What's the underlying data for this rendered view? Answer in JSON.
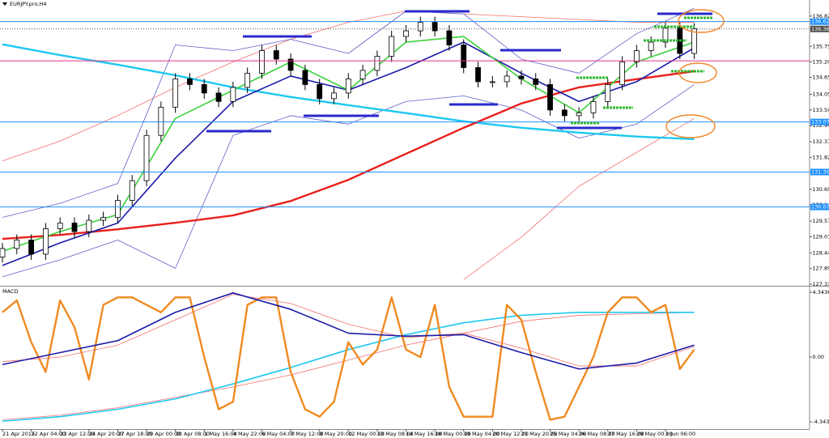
{
  "chart_data": [
    {
      "type": "candlestick",
      "title": "EURJPY.pro,H4",
      "xlim": [
        0,
        56
      ],
      "ylim": [
        127.31,
        137.39
      ],
      "yticks": [
        {
          "value": 136.82,
          "label": "136.820"
        },
        {
          "value": 135.75,
          "label": "135.750"
        },
        135.205,
        134.655,
        134.055,
        {
          "value": 133.5,
          "label": "133.500"
        },
        132.945,
        132.375,
        131.825,
        130.695,
        {
          "value": 130.14,
          "label": "130.140"
        },
        {
          "value": 129.57,
          "label": "129.570"
        },
        129.015,
        128.445,
        {
          "value": 127.89,
          "label": "127.890"
        },
        127.335
      ],
      "colors": {
        "up": "#ffffff",
        "down": "#000000"
      },
      "open": [
        128.3,
        128.6,
        128.9,
        128.4,
        129.3,
        129.5,
        129.2,
        129.6,
        129.7,
        130.3,
        131.0,
        132.6,
        133.6,
        134.6,
        134.4,
        134.1,
        133.8,
        134.3,
        134.8,
        135.6,
        135.3,
        134.9,
        134.4,
        133.9,
        134.1,
        134.6,
        134.9,
        135.4,
        136.1,
        136.3,
        136.6,
        136.3,
        135.8,
        135.0,
        134.5,
        134.5,
        134.7,
        134.6,
        134.4,
        133.5,
        133.3,
        133.4,
        133.8,
        134.4,
        135.2,
        135.6,
        135.9,
        136.4,
        135.5
      ],
      "high": [
        128.8,
        129.1,
        129.1,
        129.5,
        129.7,
        129.7,
        129.8,
        129.9,
        130.5,
        131.2,
        132.8,
        133.8,
        134.8,
        134.8,
        134.6,
        134.3,
        134.5,
        135.0,
        135.8,
        135.8,
        135.5,
        135.1,
        134.6,
        134.3,
        134.8,
        135.1,
        135.6,
        136.3,
        136.5,
        136.8,
        136.8,
        136.5,
        136.0,
        135.2,
        134.7,
        134.9,
        134.9,
        134.8,
        134.6,
        133.7,
        133.6,
        134.0,
        134.6,
        135.4,
        135.8,
        136.1,
        136.6,
        136.6,
        136.57
      ],
      "low": [
        128.1,
        128.4,
        128.2,
        128.2,
        129.1,
        129.0,
        129.0,
        129.4,
        129.5,
        130.1,
        130.8,
        132.4,
        133.4,
        134.2,
        133.9,
        133.6,
        133.6,
        134.1,
        134.6,
        135.1,
        134.7,
        134.2,
        133.7,
        133.7,
        133.9,
        134.4,
        134.7,
        135.2,
        135.9,
        136.1,
        136.1,
        135.6,
        134.8,
        134.3,
        134.3,
        134.3,
        134.4,
        134.2,
        133.3,
        133.1,
        133.1,
        133.2,
        133.6,
        134.2,
        135.0,
        135.4,
        135.7,
        135.3,
        135.3
      ],
      "close": [
        128.6,
        128.9,
        128.4,
        129.3,
        129.5,
        129.2,
        129.6,
        129.7,
        130.3,
        131.0,
        132.6,
        133.6,
        134.6,
        134.4,
        134.1,
        133.8,
        134.3,
        134.8,
        135.6,
        135.3,
        134.9,
        134.4,
        133.9,
        134.1,
        134.6,
        134.9,
        135.4,
        136.1,
        136.3,
        136.6,
        136.3,
        135.8,
        135.0,
        134.5,
        134.5,
        134.7,
        134.6,
        134.4,
        133.5,
        133.3,
        133.4,
        133.8,
        134.4,
        135.2,
        135.6,
        135.9,
        136.4,
        135.5,
        136.37
      ],
      "levels": [
        {
          "value": 136.626,
          "label": "136.626",
          "color": "#1e90ff",
          "style": "solid"
        },
        {
          "value": 136.366,
          "label": "136.366",
          "color": "#505050",
          "style": "dotted"
        },
        {
          "value": 135.24,
          "color": "#e0338a",
          "style": "solid"
        },
        {
          "value": 133.075,
          "label": "133.075",
          "color": "#1e90ff",
          "style": "solid"
        },
        {
          "value": 131.305,
          "label": "131.305",
          "color": "#1e90ff",
          "style": "solid"
        },
        {
          "value": 130.07,
          "label": "130.070",
          "color": "#1e90ff",
          "style": "solid"
        }
      ],
      "series": [
        {
          "color": "#f07070",
          "weight": "thin",
          "x": [
            0,
            4,
            8,
            12,
            16,
            20,
            24,
            28,
            32,
            36,
            40,
            44,
            48
          ],
          "values": [
            131.7,
            132.4,
            133.3,
            134.3,
            135.2,
            136.0,
            136.6,
            137.0,
            136.9,
            136.8,
            136.7,
            136.6,
            136.6
          ]
        },
        {
          "color": "#f07070",
          "weight": "thin",
          "x": [
            0,
            4,
            8,
            12,
            16,
            20,
            24,
            28,
            32,
            36,
            40,
            44,
            48
          ],
          "values": [
            null,
            null,
            null,
            null,
            null,
            null,
            null,
            null,
            127.5,
            129.0,
            130.8,
            132.0,
            133.2
          ]
        },
        {
          "color": "#6060c8",
          "weight": "thin",
          "x": [
            0,
            4,
            8,
            12,
            16,
            20,
            24,
            28,
            32,
            36,
            40,
            44,
            48
          ],
          "values": [
            129.7,
            130.2,
            130.9,
            135.8,
            135.6,
            136.0,
            135.5,
            137.0,
            136.9,
            135.3,
            134.8,
            136.2,
            137.1
          ]
        },
        {
          "color": "#6060c8",
          "weight": "thin",
          "x": [
            0,
            4,
            8,
            12,
            16,
            20,
            24,
            28,
            32,
            36,
            40,
            44,
            48
          ],
          "values": [
            127.6,
            128.2,
            128.9,
            127.9,
            132.6,
            133.3,
            133.0,
            133.8,
            134.0,
            133.5,
            132.5,
            133.0,
            134.4
          ]
        },
        {
          "color": "#1ec8f0",
          "weight": "thick",
          "x": [
            0,
            4,
            8,
            12,
            16,
            20,
            24,
            28,
            32,
            36,
            40,
            44,
            48
          ],
          "values": [
            135.82,
            135.44,
            135.1,
            134.73,
            134.3,
            133.96,
            133.67,
            133.39,
            133.1,
            132.87,
            132.7,
            132.56,
            132.47
          ]
        },
        {
          "color": "#e8201a",
          "weight": "thick",
          "x": [
            0,
            4,
            8,
            12,
            16,
            20,
            24,
            28,
            32,
            36,
            40,
            44,
            48
          ],
          "values": [
            128.94,
            129.08,
            129.28,
            129.51,
            129.77,
            130.28,
            131.03,
            131.95,
            132.87,
            133.73,
            134.3,
            134.59,
            134.87
          ]
        },
        {
          "color": "#1a1aa8",
          "weight": "medium",
          "x": [
            0,
            4,
            8,
            12,
            16,
            20,
            24,
            28,
            32,
            36,
            40,
            44,
            48
          ],
          "values": [
            128.0,
            128.8,
            129.5,
            131.8,
            133.8,
            134.7,
            134.2,
            135.0,
            135.9,
            134.8,
            133.8,
            134.5,
            135.7
          ]
        },
        {
          "color": "#3ad23a",
          "weight": "medium",
          "x": [
            0,
            4,
            8,
            12,
            16,
            20,
            24,
            28,
            32,
            36,
            40,
            44,
            48
          ],
          "values": [
            128.5,
            129.2,
            129.8,
            133.2,
            134.2,
            135.2,
            134.2,
            135.9,
            136.1,
            134.6,
            133.4,
            135.2,
            135.9
          ]
        }
      ]
    },
    {
      "type": "line",
      "title": "MACD",
      "xlim": [
        0,
        56
      ],
      "ylim": [
        -4.83,
        4.67
      ],
      "yticks": [
        4.3436,
        {
          "value": 0,
          "label": "0.00"
        },
        -4.3438
      ],
      "xticks": [
        {
          "value": 0,
          "label": "21 Apr 2015"
        },
        {
          "value": 2,
          "label": "22 Apr 04:00"
        },
        {
          "value": 4,
          "label": "23 Apr 12:00"
        },
        {
          "value": 6,
          "label": "24 Apr 20:00"
        },
        {
          "value": 8,
          "label": "27 Apr 18:00"
        },
        {
          "value": 10,
          "label": "29 Apr 00:00"
        },
        {
          "value": 12,
          "label": "30 Apr 08:00"
        },
        {
          "value": 14,
          "label": "1 May 16:00"
        },
        {
          "value": 16,
          "label": "4 May 22:00"
        },
        {
          "value": 18,
          "label": "6 May 04:00"
        },
        {
          "value": 20,
          "label": "7 May 12:00"
        },
        {
          "value": 22,
          "label": "8 May 20:00"
        },
        {
          "value": 24,
          "label": "12 May 00:00"
        },
        {
          "value": 26,
          "label": "13 May 08:00"
        },
        {
          "value": 28,
          "label": "14 May 16:00"
        },
        {
          "value": 30,
          "label": "18 May 00:00"
        },
        {
          "value": 32,
          "label": "19 May 04:00"
        },
        {
          "value": 34,
          "label": "20 May 12:00"
        },
        {
          "value": 36,
          "label": "21 May 20:00"
        },
        {
          "value": 38,
          "label": "25 May 04:00"
        },
        {
          "value": 40,
          "label": "26 May 08:00"
        },
        {
          "value": 42,
          "label": "27 May 16:00"
        },
        {
          "value": 44,
          "label": "29 May 00:00"
        },
        {
          "value": 46,
          "label": "1 Jun 06:00"
        }
      ],
      "series": [
        {
          "color": "#f07070",
          "weight": "thin",
          "x": [
            0,
            4,
            8,
            12,
            16,
            20,
            24,
            28,
            32,
            36,
            40,
            44,
            48
          ],
          "values": [
            -4.2,
            -3.9,
            -3.4,
            -2.7,
            -2.0,
            -1.2,
            -0.2,
            0.8,
            1.6,
            2.4,
            2.8,
            2.9,
            3.0
          ]
        },
        {
          "color": "#1ec8f0",
          "weight": "medium",
          "x": [
            0,
            4,
            8,
            12,
            16,
            20,
            24,
            28,
            32,
            36,
            40,
            44,
            48
          ],
          "values": [
            -4.3,
            -4.0,
            -3.5,
            -2.8,
            -1.8,
            -0.7,
            0.5,
            1.5,
            2.3,
            2.8,
            3.0,
            3.0,
            3.0
          ]
        },
        {
          "color": "#f08a20",
          "weight": "thick",
          "x": [
            0,
            1,
            2,
            3,
            4,
            5,
            6,
            7,
            8,
            9,
            10,
            11,
            12,
            13,
            14,
            15,
            16,
            17,
            18,
            19,
            20,
            21,
            22,
            23,
            24,
            25,
            26,
            27,
            28,
            29,
            30,
            31,
            32,
            33,
            34,
            35,
            36,
            37,
            38,
            39,
            40,
            41,
            42,
            43,
            44,
            45,
            46,
            47,
            48
          ],
          "values": [
            3.0,
            3.8,
            1.0,
            -1.0,
            3.8,
            2.0,
            -1.5,
            3.5,
            4.0,
            4.0,
            3.5,
            3.0,
            4.0,
            4.0,
            0,
            -3.5,
            -3.0,
            3.5,
            4.0,
            4.0,
            -1.0,
            -3.5,
            -4.0,
            -3.0,
            1.0,
            -0.5,
            0.5,
            4.0,
            0.5,
            0.0,
            3.5,
            -2.0,
            -4.0,
            -4.0,
            -4.0,
            3.5,
            2.5,
            -1.0,
            -4.2,
            -4.0,
            -2.0,
            0.0,
            3.0,
            4.0,
            4.0,
            3.0,
            3.5,
            -0.8,
            0.5
          ]
        },
        {
          "color": "#f07070",
          "weight": "thin",
          "x": [
            0,
            4,
            8,
            12,
            16,
            20,
            24,
            28,
            32,
            36,
            40,
            44,
            48
          ],
          "values": [
            -0.3,
            0.0,
            0.8,
            2.5,
            4.2,
            3.6,
            2.2,
            1.3,
            1.6,
            0.6,
            -0.6,
            -0.6,
            0.7
          ]
        },
        {
          "color": "#1a1aa8",
          "weight": "medium",
          "x": [
            0,
            4,
            8,
            12,
            16,
            20,
            24,
            28,
            32,
            36,
            40,
            44,
            48
          ],
          "values": [
            -0.5,
            0.3,
            1.1,
            3.0,
            4.3,
            3.2,
            1.6,
            1.4,
            1.5,
            0.3,
            -0.8,
            -0.4,
            0.8
          ]
        }
      ]
    }
  ]
}
